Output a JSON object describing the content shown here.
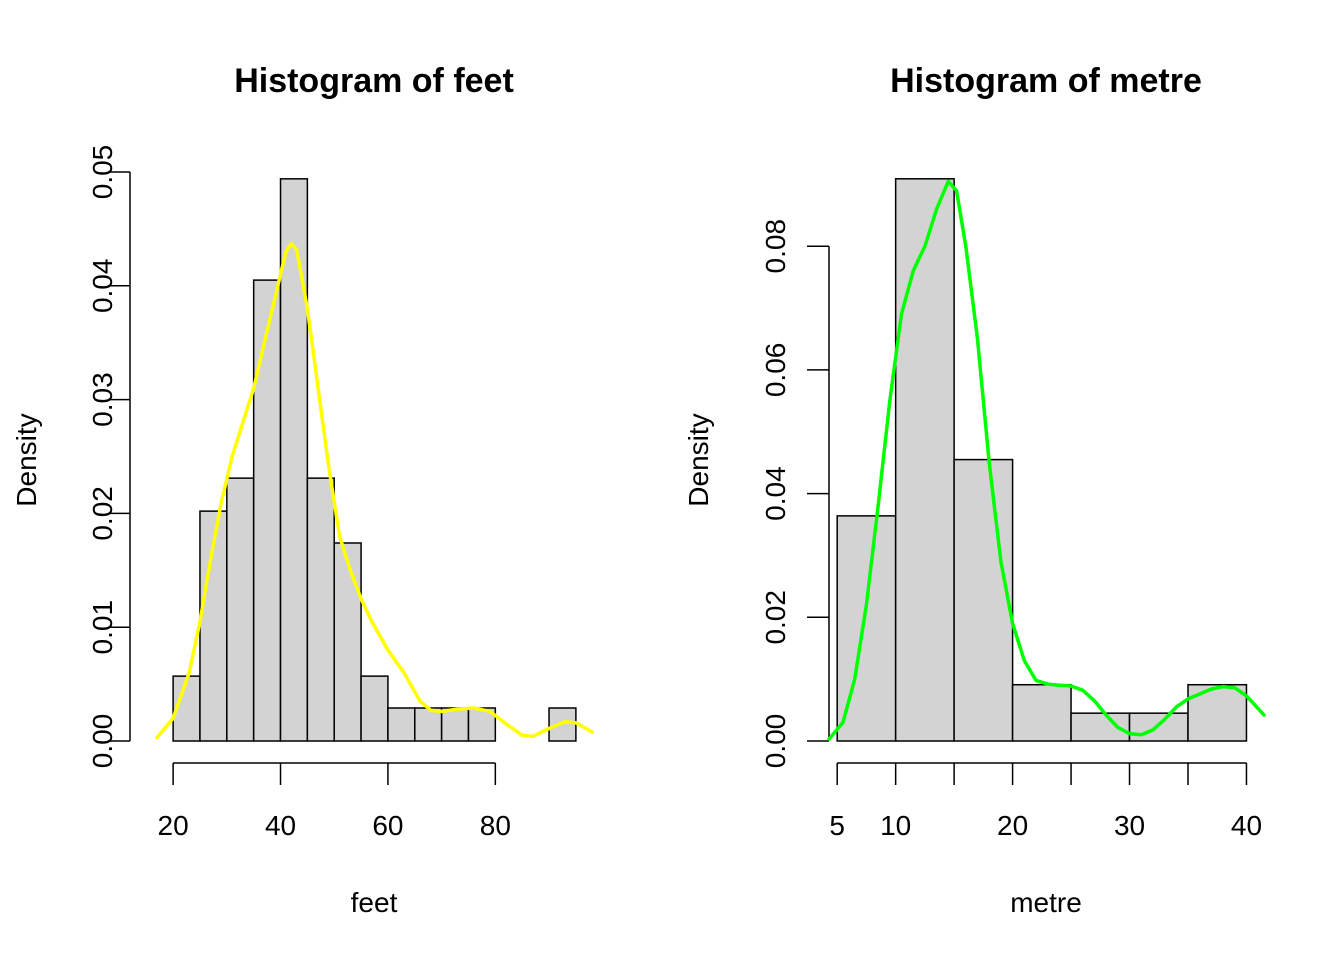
{
  "chart_data": [
    {
      "type": "bar",
      "title": "Histogram of feet",
      "xlabel": "feet",
      "ylabel": "Density",
      "bin_edges": [
        20,
        25,
        30,
        35,
        40,
        45,
        50,
        55,
        60,
        65,
        70,
        75,
        80,
        85,
        90,
        95
      ],
      "values": [
        0.0057,
        0.0202,
        0.0231,
        0.0405,
        0.0494,
        0.0231,
        0.0174,
        0.0057,
        0.0029,
        0.0029,
        0.0029,
        0.0029,
        0,
        0,
        0.0029
      ],
      "xlim": [
        17,
        98
      ],
      "ylim": [
        0,
        0.05
      ],
      "x_ticks": [
        20,
        40,
        60,
        80
      ],
      "x_tick_labels": [
        "20",
        "40",
        "60",
        "80"
      ],
      "y_ticks": [
        0,
        0.01,
        0.02,
        0.03,
        0.04,
        0.05
      ],
      "y_tick_labels": [
        "0.00",
        "0.01",
        "0.02",
        "0.03",
        "0.04",
        "0.05"
      ],
      "grid": false,
      "density_color": "#ffff00",
      "density_curve": [
        [
          17,
          0.0003
        ],
        [
          20,
          0.002
        ],
        [
          23,
          0.006
        ],
        [
          25,
          0.0105
        ],
        [
          27,
          0.016
        ],
        [
          29,
          0.021
        ],
        [
          31,
          0.025
        ],
        [
          33,
          0.028
        ],
        [
          35,
          0.031
        ],
        [
          37,
          0.035
        ],
        [
          39,
          0.039
        ],
        [
          41,
          0.043
        ],
        [
          42,
          0.0437
        ],
        [
          43,
          0.0432
        ],
        [
          45,
          0.038
        ],
        [
          47,
          0.031
        ],
        [
          49,
          0.024
        ],
        [
          51,
          0.018
        ],
        [
          53,
          0.015
        ],
        [
          55,
          0.0125
        ],
        [
          57,
          0.0105
        ],
        [
          60,
          0.008
        ],
        [
          63,
          0.006
        ],
        [
          66,
          0.0035
        ],
        [
          68,
          0.0027
        ],
        [
          70,
          0.0026
        ],
        [
          73,
          0.0028
        ],
        [
          76,
          0.0029
        ],
        [
          79,
          0.0026
        ],
        [
          82,
          0.0015
        ],
        [
          85,
          0.0005
        ],
        [
          87,
          0.0004
        ],
        [
          90,
          0.0011
        ],
        [
          93,
          0.0017
        ],
        [
          95,
          0.0016
        ],
        [
          98,
          0.0008
        ]
      ]
    },
    {
      "type": "bar",
      "title": "Histogram of metre",
      "xlabel": "metre",
      "ylabel": "Density",
      "bin_edges": [
        5,
        10,
        15,
        20,
        25,
        30,
        35,
        40
      ],
      "values": [
        0.0364,
        0.0909,
        0.0455,
        0.0091,
        0.0045,
        0.0045,
        0.0091
      ],
      "xlim": [
        4.3,
        41.5
      ],
      "ylim": [
        0,
        0.092
      ],
      "x_ticks": [
        5,
        10,
        15,
        20,
        25,
        30,
        35,
        40
      ],
      "x_tick_labels": [
        "5",
        "10",
        "",
        "20",
        "",
        "30",
        "",
        "40"
      ],
      "y_ticks": [
        0,
        0.02,
        0.04,
        0.06,
        0.08
      ],
      "y_tick_labels": [
        "0.00",
        "0.02",
        "0.04",
        "0.06",
        "0.08"
      ],
      "grid": false,
      "density_color": "#00ff00",
      "density_curve": [
        [
          4.3,
          0.0003
        ],
        [
          5.5,
          0.003
        ],
        [
          6.5,
          0.01
        ],
        [
          7.5,
          0.022
        ],
        [
          8.5,
          0.038
        ],
        [
          9.5,
          0.055
        ],
        [
          10.5,
          0.069
        ],
        [
          11.5,
          0.076
        ],
        [
          12.5,
          0.08
        ],
        [
          13.5,
          0.086
        ],
        [
          14.5,
          0.0905
        ],
        [
          15.2,
          0.089
        ],
        [
          16,
          0.08
        ],
        [
          17,
          0.065
        ],
        [
          18,
          0.045
        ],
        [
          19,
          0.029
        ],
        [
          20,
          0.019
        ],
        [
          21,
          0.013
        ],
        [
          22,
          0.0098
        ],
        [
          23,
          0.0092
        ],
        [
          24,
          0.009
        ],
        [
          25,
          0.0089
        ],
        [
          26,
          0.0082
        ],
        [
          27,
          0.0065
        ],
        [
          28,
          0.0042
        ],
        [
          29,
          0.0022
        ],
        [
          30,
          0.0012
        ],
        [
          31,
          0.001
        ],
        [
          32,
          0.0018
        ],
        [
          33,
          0.0035
        ],
        [
          34,
          0.0055
        ],
        [
          35,
          0.0068
        ],
        [
          36,
          0.0076
        ],
        [
          37,
          0.0084
        ],
        [
          38,
          0.0088
        ],
        [
          39,
          0.0086
        ],
        [
          40,
          0.0073
        ],
        [
          41.5,
          0.0042
        ]
      ]
    }
  ]
}
